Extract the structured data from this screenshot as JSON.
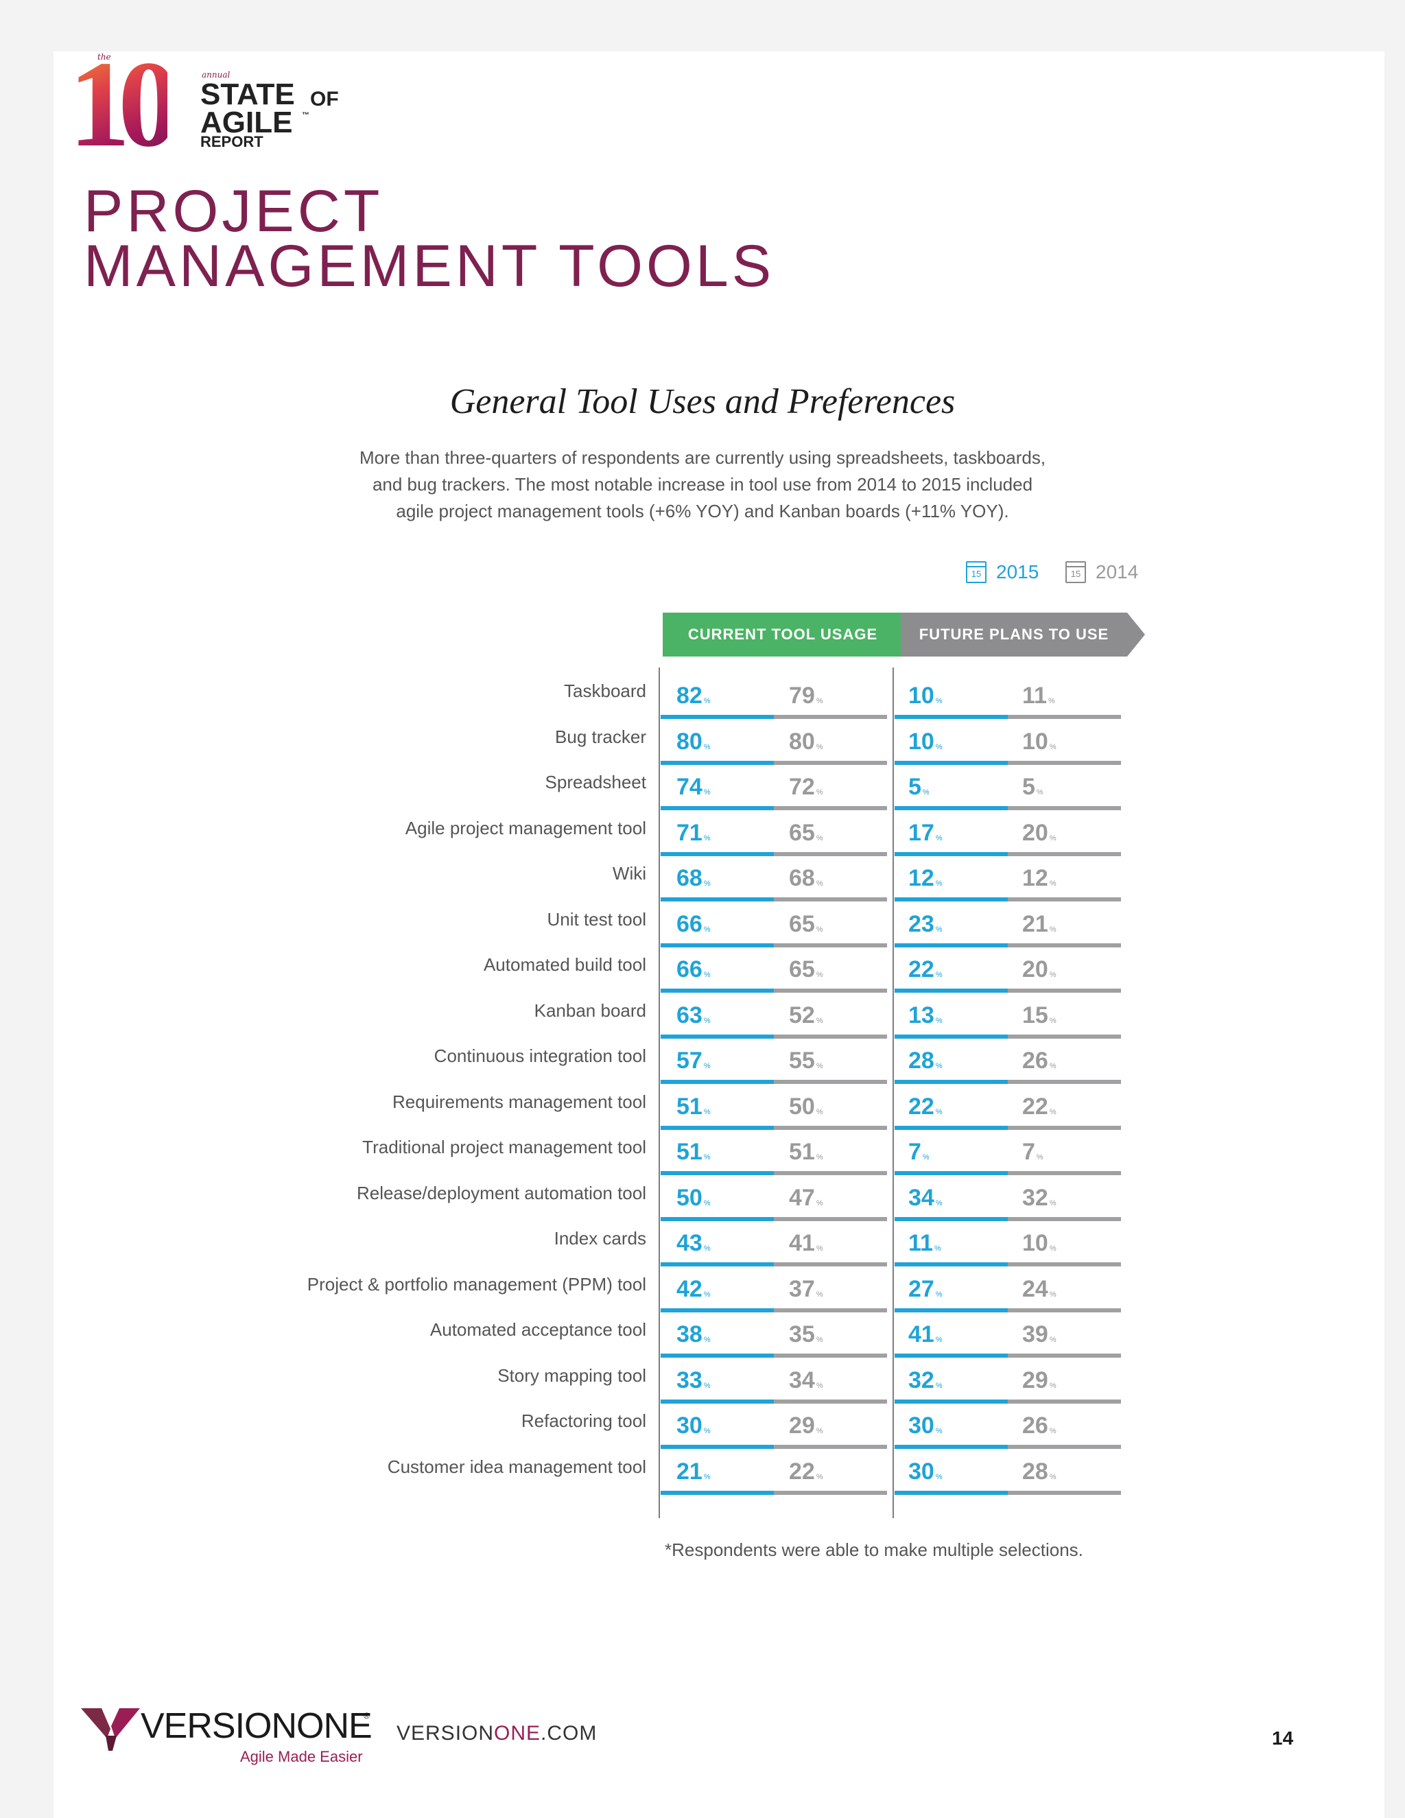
{
  "logo": {
    "the": "the",
    "ten": "10",
    "annual": "annual",
    "line1": "STATE",
    "of": "OF",
    "line2": "AGILE",
    "tm": "™",
    "line3": "REPORT"
  },
  "page": {
    "title_line1": "PROJECT",
    "title_line2": "MANAGEMENT TOOLS",
    "subtitle": "General Tool Uses and Preferences",
    "intro_line1": "More than three-quarters of respondents are currently using spreadsheets, taskboards,",
    "intro_line2": "and bug trackers. The most notable increase in tool use from 2014 to 2015 included",
    "intro_line3": "agile project management tools (+6% YOY) and Kanban boards (+11% YOY).",
    "footnote": "*Respondents were able to make multiple selections."
  },
  "legend": {
    "icon_text": "15",
    "year_2015": "2015",
    "year_2014": "2014",
    "color_2015": "#1fa3d8",
    "color_2014": "#9a9a9a"
  },
  "chart_data": {
    "type": "table",
    "headers": {
      "current": "CURRENT TOOL USAGE",
      "future": "FUTURE PLANS TO USE"
    },
    "percent_sign": "%",
    "series": [
      "2015",
      "2014"
    ],
    "rows": [
      {
        "label": "Taskboard",
        "current_2015": 82,
        "current_2014": 79,
        "future_2015": 10,
        "future_2014": 11
      },
      {
        "label": "Bug tracker",
        "current_2015": 80,
        "current_2014": 80,
        "future_2015": 10,
        "future_2014": 10
      },
      {
        "label": "Spreadsheet",
        "current_2015": 74,
        "current_2014": 72,
        "future_2015": 5,
        "future_2014": 5
      },
      {
        "label": "Agile project management tool",
        "current_2015": 71,
        "current_2014": 65,
        "future_2015": 17,
        "future_2014": 20
      },
      {
        "label": "Wiki",
        "current_2015": 68,
        "current_2014": 68,
        "future_2015": 12,
        "future_2014": 12
      },
      {
        "label": "Unit test tool",
        "current_2015": 66,
        "current_2014": 65,
        "future_2015": 23,
        "future_2014": 21
      },
      {
        "label": "Automated build tool",
        "current_2015": 66,
        "current_2014": 65,
        "future_2015": 22,
        "future_2014": 20
      },
      {
        "label": "Kanban board",
        "current_2015": 63,
        "current_2014": 52,
        "future_2015": 13,
        "future_2014": 15
      },
      {
        "label": "Continuous integration tool",
        "current_2015": 57,
        "current_2014": 55,
        "future_2015": 28,
        "future_2014": 26
      },
      {
        "label": "Requirements management tool",
        "current_2015": 51,
        "current_2014": 50,
        "future_2015": 22,
        "future_2014": 22
      },
      {
        "label": "Traditional project management tool",
        "current_2015": 51,
        "current_2014": 51,
        "future_2015": 7,
        "future_2014": 7
      },
      {
        "label": "Release/deployment automation tool",
        "current_2015": 50,
        "current_2014": 47,
        "future_2015": 34,
        "future_2014": 32
      },
      {
        "label": "Index cards",
        "current_2015": 43,
        "current_2014": 41,
        "future_2015": 11,
        "future_2014": 10
      },
      {
        "label": "Project & portfolio management (PPM) tool",
        "current_2015": 42,
        "current_2014": 37,
        "future_2015": 27,
        "future_2014": 24
      },
      {
        "label": "Automated acceptance tool",
        "current_2015": 38,
        "current_2014": 35,
        "future_2015": 41,
        "future_2014": 39
      },
      {
        "label": "Story mapping tool",
        "current_2015": 33,
        "current_2014": 34,
        "future_2015": 32,
        "future_2014": 29
      },
      {
        "label": "Refactoring tool",
        "current_2015": 30,
        "current_2014": 29,
        "future_2015": 30,
        "future_2014": 26
      },
      {
        "label": "Customer idea management tool",
        "current_2015": 21,
        "current_2014": 22,
        "future_2015": 30,
        "future_2014": 28
      }
    ]
  },
  "footer": {
    "brand_name": "VERSIONONE",
    "brand_reg": "®",
    "tagline": "Agile Made Easier",
    "site_prefix": "VERSION",
    "site_accent": "ONE",
    "site_suffix": ".COM",
    "page_number": "14"
  }
}
